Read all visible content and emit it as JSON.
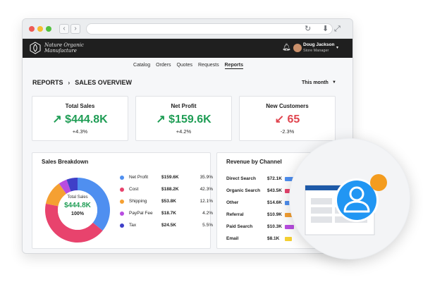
{
  "app": {
    "brand_line1": "Nature Organic",
    "brand_line2": "Manufacture",
    "user_name": "Doug Jackson",
    "user_role": "Store Manager"
  },
  "nav": {
    "items": [
      {
        "label": "Catalog",
        "active": false
      },
      {
        "label": "Orders",
        "active": false
      },
      {
        "label": "Quotes",
        "active": false
      },
      {
        "label": "Requests",
        "active": false
      },
      {
        "label": "Reports",
        "active": true
      }
    ]
  },
  "breadcrumb": {
    "root": "REPORTS",
    "current": "SALES OVERVIEW"
  },
  "period": {
    "selected": "This month"
  },
  "kpis": [
    {
      "title": "Total Sales",
      "value": "$444.8K",
      "delta": "+4.3%",
      "trend": "up"
    },
    {
      "title": "Net Profit",
      "value": "$159.6K",
      "delta": "+4.2%",
      "trend": "up"
    },
    {
      "title": "New Customers",
      "value": "65",
      "delta": "-2.3%",
      "trend": "down"
    }
  ],
  "sales_breakdown": {
    "title": "Sales Breakdown",
    "center_label": "Total Sales",
    "center_value": "$444.8K",
    "center_pct": "100%",
    "items": [
      {
        "name": "Net Profit",
        "value": "$159.6K",
        "pct": "35.9%",
        "share": 35.9,
        "color": "#4f8ff0"
      },
      {
        "name": "Cost",
        "value": "$188.2K",
        "pct": "42.3%",
        "share": 42.3,
        "color": "#e8436d"
      },
      {
        "name": "Shipping",
        "value": "$53.8K",
        "pct": "12.1%",
        "share": 12.1,
        "color": "#f5a032"
      },
      {
        "name": "PayPal Fee",
        "value": "$18.7K",
        "pct": "4.2%",
        "share": 4.2,
        "color": "#b84de0"
      },
      {
        "name": "Tax",
        "value": "$24.5K",
        "pct": "5.5%",
        "share": 5.5,
        "color": "#3f3fc8"
      }
    ]
  },
  "revenue_by_channel": {
    "title": "Revenue by Channel",
    "channels": [
      {
        "name": "Direct Search",
        "value": "$72.1K",
        "amount": 72.1,
        "color": "#4f8ff0"
      },
      {
        "name": "Organic Search",
        "value": "$43.5K",
        "amount": 43.5,
        "color": "#e8436d"
      },
      {
        "name": "Other",
        "value": "$14.6K",
        "amount": 14.6,
        "color": "#4f8ff0"
      },
      {
        "name": "Referral",
        "value": "$10.9K",
        "amount": 10.9,
        "color": "#f5a032"
      },
      {
        "name": "Paid Search",
        "value": "$10.3K",
        "amount": 10.3,
        "color": "#b84de0"
      },
      {
        "name": "Email",
        "value": "$8.1K",
        "amount": 8.1,
        "color": "#f5d032"
      }
    ]
  },
  "colors": {
    "accent_blue": "#2196f3",
    "badge_orange": "#f39c1f",
    "positive": "#1f9d55",
    "negative": "#e0454f"
  }
}
